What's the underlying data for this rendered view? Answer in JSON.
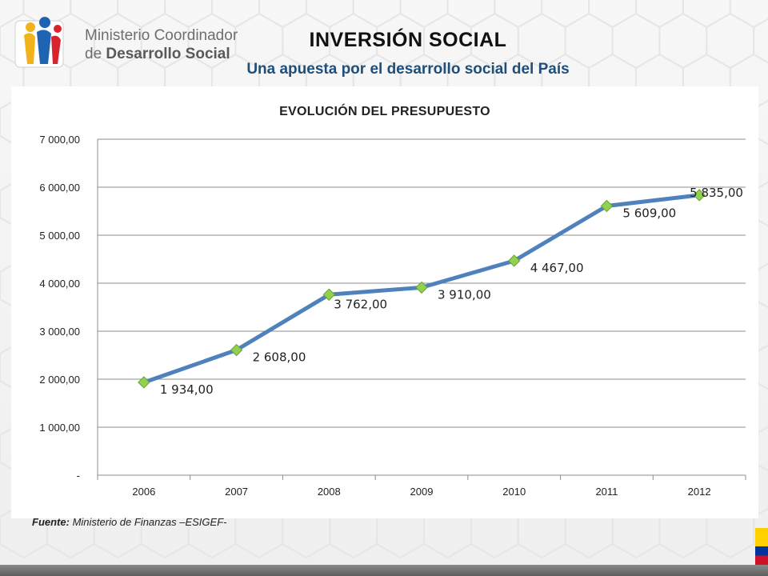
{
  "header": {
    "org_line1": "Ministerio Coordinador",
    "org_line2_prefix": "de ",
    "org_line2_bold": "Desarrollo Social",
    "title": "INVERSIÓN SOCIAL",
    "subtitle": "Una apuesta por el desarrollo social del País"
  },
  "source": {
    "label": "Fuente:",
    "text": " Ministerio de Finanzas –ESIGEF-"
  },
  "colors": {
    "line": "#4f81bd",
    "marker": "#92d050",
    "grid": "#8c8c8c"
  },
  "chart_data": {
    "type": "line",
    "title": "EVOLUCIÓN DEL PRESUPUESTO",
    "xlabel": "",
    "ylabel": "",
    "categories": [
      "2006",
      "2007",
      "2008",
      "2009",
      "2010",
      "2011",
      "2012"
    ],
    "series": [
      {
        "values": [
          1934,
          2608,
          3762,
          3910,
          4467,
          5609,
          5835
        ],
        "data_labels": [
          "1 934,00",
          "2 608,00",
          "3 762,00",
          "3 910,00",
          "4 467,00",
          "5 609,00",
          "5 835,00"
        ]
      }
    ],
    "ylim": [
      0,
      7000
    ],
    "yticks": [
      0,
      1000,
      2000,
      3000,
      4000,
      5000,
      6000,
      7000
    ],
    "ytick_labels": [
      "-",
      "1 000,00",
      "2 000,00",
      "3 000,00",
      "4 000,00",
      "5 000,00",
      "6 000,00",
      "7 000,00"
    ],
    "grid": true,
    "legend": "none",
    "marker": "diamond"
  }
}
